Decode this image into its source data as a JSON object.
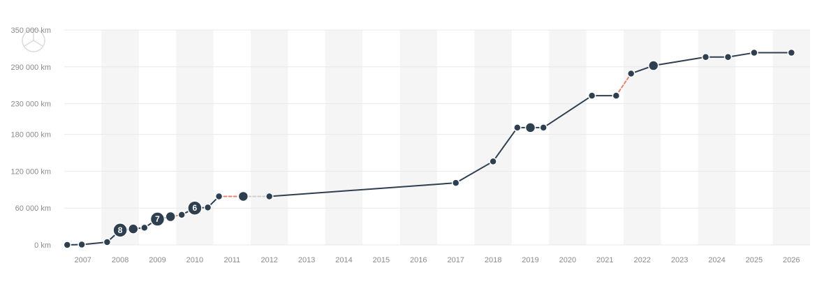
{
  "chart_data": {
    "type": "line",
    "title": "",
    "xlabel": "",
    "ylabel": "",
    "ylim": [
      0,
      350000
    ],
    "xlim": [
      2006.5,
      2026.5
    ],
    "y_ticks": [
      {
        "value": 0,
        "label": "0 km"
      },
      {
        "value": 60000,
        "label": "60 000 km"
      },
      {
        "value": 120000,
        "label": "120 000 km"
      },
      {
        "value": 180000,
        "label": "180 000 km"
      },
      {
        "value": 230000,
        "label": "230 000 km"
      },
      {
        "value": 290000,
        "label": "290 000 km"
      },
      {
        "value": 350000,
        "label": "350 000 km"
      }
    ],
    "x_ticks": [
      "2007",
      "2008",
      "2009",
      "2010",
      "2011",
      "2012",
      "2013",
      "2014",
      "2015",
      "2016",
      "2017",
      "2018",
      "2019",
      "2020",
      "2021",
      "2022",
      "2023",
      "2024",
      "2025",
      "2026"
    ],
    "shaded_years": [
      "2008",
      "2010",
      "2012",
      "2014",
      "2016",
      "2018",
      "2020",
      "2022",
      "2024",
      "2026"
    ],
    "grid": true,
    "colors": {
      "line": "#2e3f50",
      "point": "#2e3f50",
      "grid": "#e9e9e9",
      "band": "#f5f5f5",
      "suspicious": "#e0836a",
      "gap": "#cfcfcf",
      "tick_text": "#8a8a8a"
    },
    "series": [
      {
        "points": [
          {
            "x": 2006.58,
            "y": 0
          },
          {
            "x": 2006.97,
            "y": 500
          },
          {
            "x": 2007.65,
            "y": 4500
          },
          {
            "x": 2008.0,
            "y": 24000,
            "count": "8"
          },
          {
            "x": 2008.35,
            "y": 26000,
            "size": "medium"
          },
          {
            "x": 2008.65,
            "y": 28000
          },
          {
            "x": 2009.0,
            "y": 42000,
            "count": "7"
          },
          {
            "x": 2009.35,
            "y": 46000,
            "size": "medium"
          },
          {
            "x": 2009.65,
            "y": 49000
          },
          {
            "x": 2010.0,
            "y": 60000,
            "count": "6"
          },
          {
            "x": 2010.35,
            "y": 61000
          },
          {
            "x": 2010.65,
            "y": 79000
          },
          {
            "x": 2011.3,
            "y": 79000,
            "size": "medium"
          },
          {
            "x": 2012.0,
            "y": 79000
          },
          {
            "x": 2017.0,
            "y": 101000
          },
          {
            "x": 2018.0,
            "y": 136000
          },
          {
            "x": 2018.65,
            "y": 191000
          },
          {
            "x": 2019.0,
            "y": 191000,
            "size": "medium"
          },
          {
            "x": 2019.35,
            "y": 191000
          },
          {
            "x": 2020.65,
            "y": 243000
          },
          {
            "x": 2021.3,
            "y": 243000
          },
          {
            "x": 2021.7,
            "y": 279000
          },
          {
            "x": 2022.3,
            "y": 292000,
            "size": "medium"
          },
          {
            "x": 2023.7,
            "y": 306000
          },
          {
            "x": 2024.3,
            "y": 306000
          },
          {
            "x": 2025.0,
            "y": 313000
          },
          {
            "x": 2026.0,
            "y": 313000
          }
        ],
        "segment_styles": [
          "solid",
          "solid",
          "solid",
          "solid",
          "solid",
          "solid",
          "solid",
          "dashed-red",
          "solid",
          "solid",
          "solid",
          "dashed-red",
          "dashed-gray",
          "solid",
          "solid",
          "solid",
          "solid",
          "solid",
          "solid",
          "solid",
          "dashed-red",
          "solid",
          "solid",
          "solid",
          "solid",
          "solid"
        ]
      }
    ]
  }
}
